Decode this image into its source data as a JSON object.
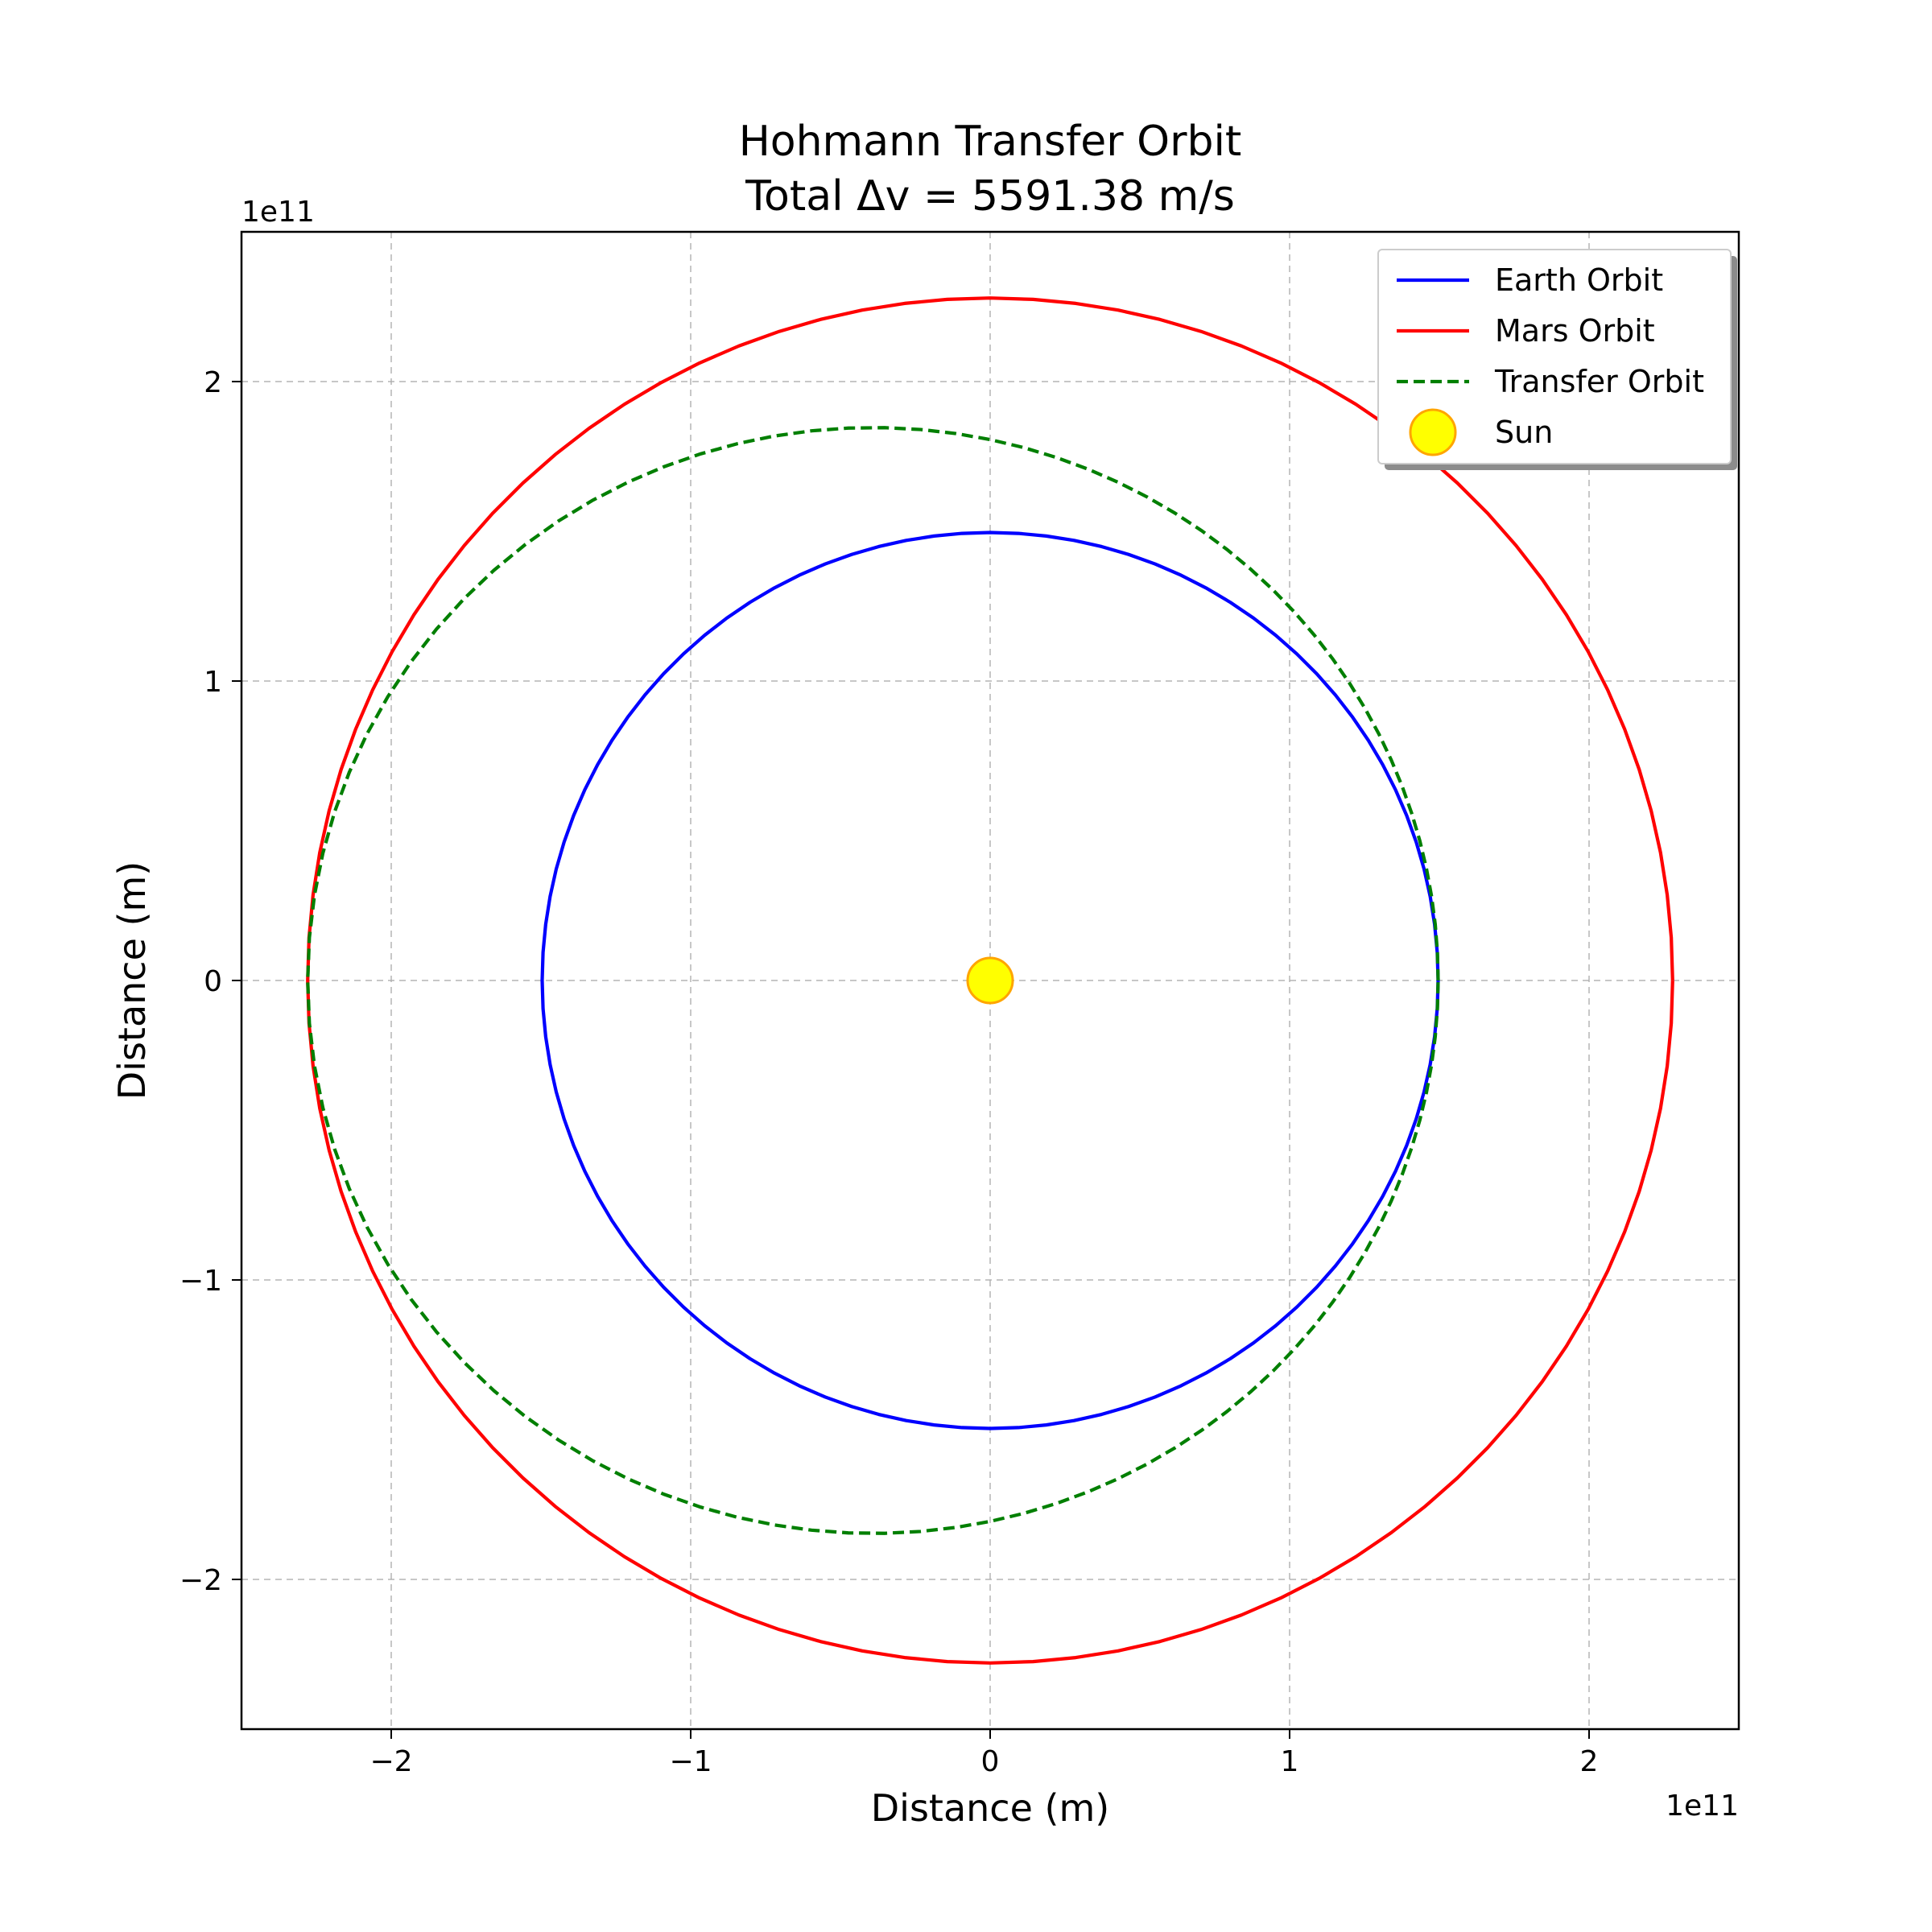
{
  "chart_data": {
    "type": "line",
    "title": "Hohmann Transfer Orbit",
    "subtitle": "Total Δv = 5591.38 m/s",
    "xlabel": "Distance (m)",
    "ylabel": "Distance (m)",
    "x_offset_label": "1e11",
    "y_offset_label": "1e11",
    "xlim": [
      -250000000000.0,
      250000000000.0
    ],
    "ylim": [
      -250000000000.0,
      250000000000.0
    ],
    "xticks": [
      -200000000000.0,
      -100000000000.0,
      0,
      100000000000.0,
      200000000000.0
    ],
    "yticks": [
      -200000000000.0,
      -100000000000.0,
      0,
      100000000000.0,
      200000000000.0
    ],
    "xtick_labels": [
      "−2",
      "−1",
      "0",
      "1",
      "2"
    ],
    "ytick_labels": [
      "−2",
      "−1",
      "0",
      "1",
      "2"
    ],
    "grid": true,
    "legend_position": "top-right",
    "series": [
      {
        "name": "Earth Orbit",
        "kind": "circle",
        "color": "#0000ff",
        "style": "solid",
        "center": [
          0,
          0
        ],
        "radius": 149600000000.0
      },
      {
        "name": "Mars Orbit",
        "kind": "circle",
        "color": "#ff0000",
        "style": "solid",
        "center": [
          0,
          0
        ],
        "radius": 227900000000.0
      },
      {
        "name": "Transfer Orbit",
        "kind": "ellipse",
        "color": "#007f00",
        "style": "dashed",
        "semi_major_axis": 188750000000.0,
        "eccentricity": 0.2074,
        "perihelion_x": 149600000000.0,
        "aphelion_x": -227900000000.0
      },
      {
        "name": "Sun",
        "kind": "point",
        "x": 0,
        "y": 0,
        "color": "#ffff00",
        "edge_color": "#ffa500"
      }
    ]
  }
}
